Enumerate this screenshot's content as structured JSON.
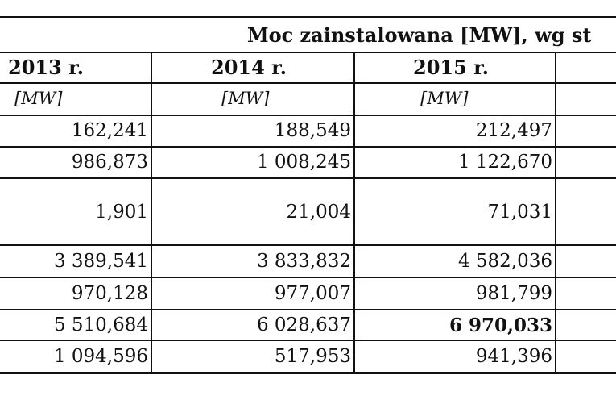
{
  "title": "Moc zainstalowana [MW], wg st",
  "columns": [
    {
      "year": "2013 r.",
      "unit": "[MW]"
    },
    {
      "year": "2014 r.",
      "unit": "[MW]"
    },
    {
      "year": "2015 r.",
      "unit": "[MW]"
    }
  ],
  "rows": [
    [
      "162,241",
      "188,549",
      "212,497"
    ],
    [
      "986,873",
      "1 008,245",
      "1 122,670"
    ],
    [
      "1,901",
      "21,004",
      "71,031"
    ],
    [
      "3 389,541",
      "3 833,832",
      "4 582,036"
    ],
    [
      "970,128",
      "977,007",
      "981,799"
    ],
    [
      "5 510,684",
      "6 028,637",
      "6 970,033"
    ],
    [
      "1 094,596",
      "517,953",
      "941,396"
    ]
  ]
}
